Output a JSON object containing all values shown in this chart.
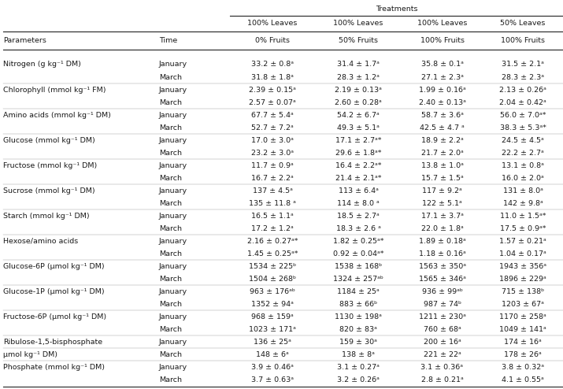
{
  "title": "Treatments",
  "col_headers_row1": [
    "",
    "",
    "100% Leaves",
    "100% Leaves",
    "100% Leaves",
    "50% Leaves"
  ],
  "col_headers_row2": [
    "Parameters",
    "Time",
    "0% Fruits",
    "50% Fruits",
    "100% Fruits",
    "100% Fruits"
  ],
  "rows": [
    [
      "Nitrogen (g kg⁻¹ DM)",
      "January",
      "33.2 ± 0.8ᵃ",
      "31.4 ± 1.7ᵃ",
      "35.8 ± 0.1ᵃ",
      "31.5 ± 2.1ᵃ"
    ],
    [
      "",
      "March",
      "31.8 ± 1.8ᵃ",
      "28.3 ± 1.2ᵃ",
      "27.1 ± 2.3ᵃ",
      "28.3 ± 2.3ᵃ"
    ],
    [
      "Chlorophyll (mmol kg⁻¹ FM)",
      "January",
      "2.39 ± 0.15ᵃ",
      "2.19 ± 0.13ᵃ",
      "1.99 ± 0.16ᵃ",
      "2.13 ± 0.26ᵃ"
    ],
    [
      "",
      "March",
      "2.57 ± 0.07ᵃ",
      "2.60 ± 0.28ᵃ",
      "2.40 ± 0.13ᵃ",
      "2.04 ± 0.42ᵃ"
    ],
    [
      "Amino acids (mmol kg⁻¹ DM)",
      "January",
      "67.7 ± 5.4ᵃ",
      "54.2 ± 6.7ᵃ",
      "58.7 ± 3.6ᵃ",
      "56.0 ± 7.0ᵃ*"
    ],
    [
      "",
      "March",
      "52.7 ± 7.2ᵃ",
      "49.3 ± 5.1ᵃ",
      "42.5 ± 4.7 ᵃ",
      "38.3 ± 5.3ᵃ*"
    ],
    [
      "Glucose (mmol kg⁻¹ DM)",
      "January",
      "17.0 ± 3.0ᵃ",
      "17.1 ± 2.7ᵃ*",
      "18.9 ± 2.2ᵃ",
      "24.5 ± 4.5ᵃ"
    ],
    [
      "",
      "March",
      "23.2 ± 3.0ᵃ",
      "29.6 ± 1.8ᵃ*",
      "21.7 ± 2.0ᵃ",
      "22.2 ± 2.7ᵃ"
    ],
    [
      "Fructose (mmol kg⁻¹ DM)",
      "January",
      "11.7 ± 0.9ᵃ",
      "16.4 ± 2.2ᵃ*",
      "13.8 ± 1.0ᵃ",
      "13.1 ± 0.8ᵃ"
    ],
    [
      "",
      "March",
      "16.7 ± 2.2ᵃ",
      "21.4 ± 2.1ᵃ*",
      "15.7 ± 1.5ᵃ",
      "16.0 ± 2.0ᵃ"
    ],
    [
      "Sucrose (mmol kg⁻¹ DM)",
      "January",
      "137 ± 4.5ᵃ",
      "113 ± 6.4ᵃ",
      "117 ± 9.2ᵃ",
      "131 ± 8.0ᵃ"
    ],
    [
      "",
      "March",
      "135 ± 11.8 ᵃ",
      "114 ± 8.0 ᵃ",
      "122 ± 5.1ᵃ",
      "142 ± 9.8ᵃ"
    ],
    [
      "Starch (mmol kg⁻¹ DM)",
      "January",
      "16.5 ± 1.1ᵃ",
      "18.5 ± 2.7ᵃ",
      "17.1 ± 3.7ᵃ",
      "11.0 ± 1.5ᵃ*"
    ],
    [
      "",
      "March",
      "17.2 ± 1.2ᵃ",
      "18.3 ± 2.6 ᵃ",
      "22.0 ± 1.8ᵃ",
      "17.5 ± 0.9ᵃ*"
    ],
    [
      "Hexose/amino acids",
      "January",
      "2.16 ± 0.27ᵃ*",
      "1.82 ± 0.25ᵃ*",
      "1.89 ± 0.18ᵃ",
      "1.57 ± 0.21ᵃ"
    ],
    [
      "",
      "March",
      "1.45 ± 0.25ᵃ*",
      "0.92 ± 0.04ᵃ*",
      "1.18 ± 0.16ᵃ",
      "1.04 ± 0.17ᵃ"
    ],
    [
      "Glucose-6P (μmol kg⁻¹ DM)",
      "January",
      "1534 ± 225ᵇ",
      "1538 ± 168ᵇ",
      "1563 ± 350ᵃ",
      "1943 ± 356ᵃ"
    ],
    [
      "",
      "March",
      "1504 ± 268ᵇ",
      "1324 ± 257ᵃᵇ",
      "1565 ± 346ᵃ",
      "1896 ± 229ᵃ"
    ],
    [
      "Glucose-1P (μmol kg⁻¹ DM)",
      "January",
      "963 ± 176ᵃᵇ",
      "1184 ± 25ᵃ",
      "936 ± 99ᵃᵇ",
      "715 ± 138ᵇ"
    ],
    [
      "",
      "March",
      "1352 ± 94ᵃ",
      "883 ± 66ᵇ",
      "987 ± 74ᵇ",
      "1203 ± 67ᵃ"
    ],
    [
      "Fructose-6P (μmol kg⁻¹ DM)",
      "January",
      "968 ± 159ᵃ",
      "1130 ± 198ᵃ",
      "1211 ± 230ᵃ",
      "1170 ± 258ᵃ"
    ],
    [
      "",
      "March",
      "1023 ± 171ᵃ",
      "820 ± 83ᵃ",
      "760 ± 68ᵃ",
      "1049 ± 141ᵃ"
    ],
    [
      "Ribulose-1,5-bisphosphate",
      "January",
      "136 ± 25ᵃ",
      "159 ± 30ᵃ",
      "200 ± 16ᵃ",
      "174 ± 16ᵃ"
    ],
    [
      "μmol kg⁻¹ DM)",
      "March",
      "148 ± 6ᵃ",
      "138 ± 8ᵃ",
      "221 ± 22ᵃ",
      "178 ± 26ᵃ"
    ],
    [
      "Phosphate (mmol kg⁻¹ DM)",
      "January",
      "3.9 ± 0.46ᵃ",
      "3.1 ± 0.27ᵃ",
      "3.1 ± 0.36ᵃ",
      "3.8 ± 0.32ᵃ"
    ],
    [
      "",
      "March",
      "3.7 ± 0.63ᵃ",
      "3.2 ± 0.26ᵃ",
      "2.8 ± 0.21ᵃ",
      "4.1 ± 0.55ᵃ"
    ]
  ],
  "bg_color": "#ffffff",
  "text_color": "#1a1a1a",
  "line_color": "#222222",
  "font_size": 6.8,
  "header_font_size": 6.8
}
